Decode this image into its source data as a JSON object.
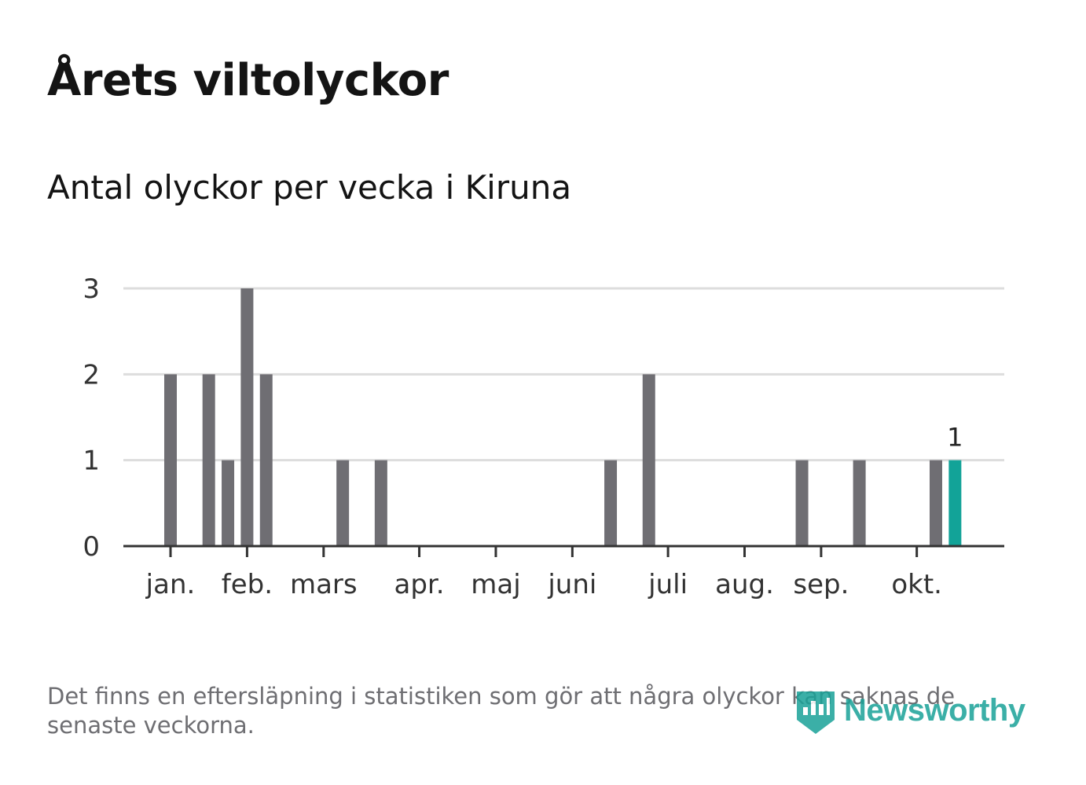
{
  "title": "Årets viltolyckor",
  "subtitle": "Antal olyckor per vecka i Kiruna",
  "footnote": "Det finns en eftersläpning i statistiken som gör att några olyckor kan saknas de senaste veckorna.",
  "brand": {
    "name": "Newsworthy"
  },
  "colors": {
    "bar": "#6f6e73",
    "highlight": "#12a398",
    "grid": "#dddddd",
    "axis": "#333333"
  },
  "chart_data": {
    "type": "bar",
    "title": "Antal olyckor per vecka i Kiruna",
    "xlabel": "",
    "ylabel": "",
    "ylim": [
      0,
      3
    ],
    "yticks": [
      "0",
      "1",
      "2",
      "3"
    ],
    "grid": true,
    "weeks_total": 46,
    "months": [
      {
        "label": "jan.",
        "week": 1
      },
      {
        "label": "feb.",
        "week": 5
      },
      {
        "label": "mars",
        "week": 9
      },
      {
        "label": "apr.",
        "week": 14
      },
      {
        "label": "maj",
        "week": 18
      },
      {
        "label": "juni",
        "week": 22
      },
      {
        "label": "juli",
        "week": 27
      },
      {
        "label": "aug.",
        "week": 31
      },
      {
        "label": "sep.",
        "week": 35
      },
      {
        "label": "okt.",
        "week": 40
      }
    ],
    "bars": [
      {
        "week": 1,
        "value": 2
      },
      {
        "week": 3,
        "value": 2
      },
      {
        "week": 4,
        "value": 1
      },
      {
        "week": 5,
        "value": 3
      },
      {
        "week": 6,
        "value": 2
      },
      {
        "week": 10,
        "value": 1
      },
      {
        "week": 12,
        "value": 1
      },
      {
        "week": 24,
        "value": 1
      },
      {
        "week": 26,
        "value": 2
      },
      {
        "week": 34,
        "value": 1
      },
      {
        "week": 37,
        "value": 1
      },
      {
        "week": 41,
        "value": 1
      },
      {
        "week": 42,
        "value": 1,
        "highlight": true,
        "label": "1"
      }
    ]
  }
}
